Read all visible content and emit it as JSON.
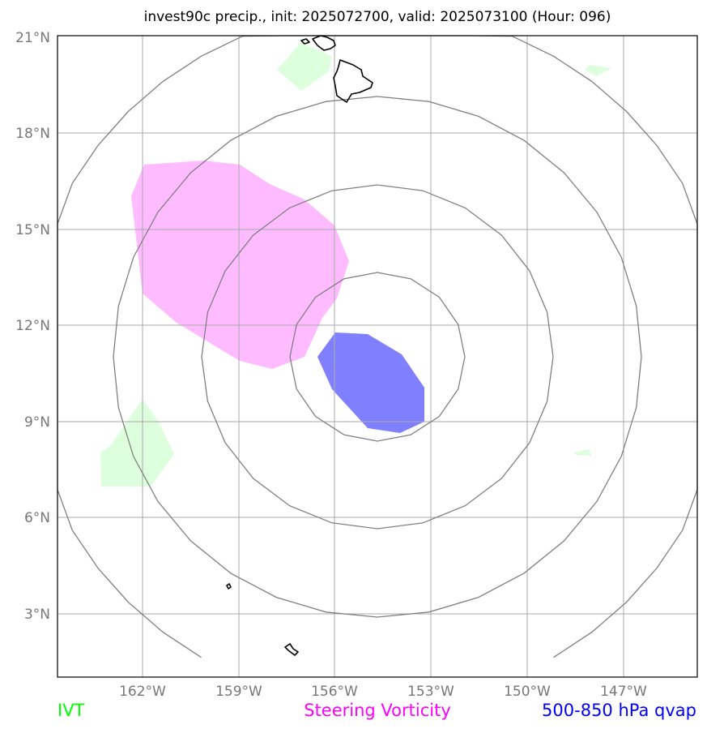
{
  "title": "invest90c precip., init: 2025072700, valid: 2025073100 (Hour: 096)",
  "chart_data": {
    "type": "map",
    "title": "invest90c precip., init: 2025072700, valid: 2025073100 (Hour: 096)",
    "longitude_ticks": [
      "162°W",
      "159°W",
      "156°W",
      "153°W",
      "150°W",
      "147°W"
    ],
    "latitude_ticks": [
      "21°N",
      "18°N",
      "15°N",
      "12°N",
      "9°N",
      "6°N",
      "3°N"
    ],
    "extent": {
      "lon": [
        -164.6,
        -144.7
      ],
      "lat": [
        1.0,
        21.0
      ]
    },
    "grid": true,
    "center": {
      "lon": -155.0,
      "lat": 11.0
    },
    "range_rings": "concentric distance rings around storm center",
    "colors": {
      "ivt": "#00ff00",
      "steering_vorticity": "#ff00ff",
      "qvap": "#0000ff",
      "ivt_fill": "#ddffdd",
      "vorticity_fill": "#ffbbff",
      "qvap_fill": "#8080ff",
      "rings": "#808080",
      "grid": "#aaaaaa"
    },
    "legend": [
      {
        "label": "IVT",
        "color": "#00ff00",
        "position": "bottom-left"
      },
      {
        "label": "Steering Vorticity",
        "color": "#ff00ff",
        "position": "bottom-center"
      },
      {
        "label": "500-850 hPa qvap",
        "color": "#0000ff",
        "position": "bottom-right"
      }
    ]
  }
}
